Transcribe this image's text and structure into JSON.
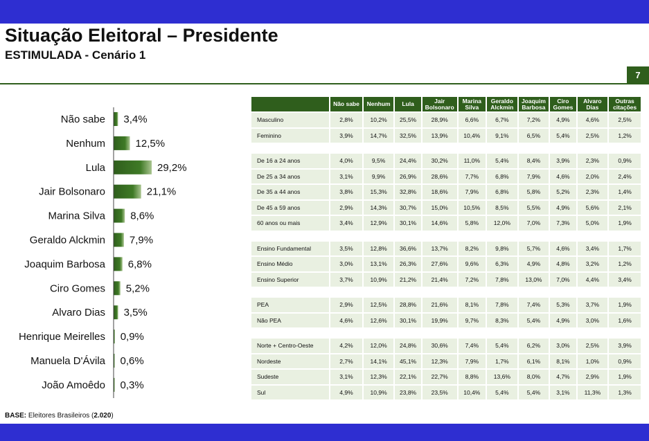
{
  "header": {
    "title": "Situação Eleitoral – Presidente",
    "subtitle": "ESTIMULADA - Cenário 1",
    "page_number": "7"
  },
  "colors": {
    "band": "#2e2ed1",
    "accent": "#2f5e1c",
    "cell": "#e9f0e1"
  },
  "chart_data": {
    "type": "bar",
    "orientation": "horizontal",
    "categories": [
      "Não sabe",
      "Nenhum",
      "Lula",
      "Jair Bolsonaro",
      "Marina Silva",
      "Geraldo Alckmin",
      "Joaquim Barbosa",
      "Ciro Gomes",
      "Alvaro Dias",
      "Henrique Meirelles",
      "Manuela D'Ávila",
      "João Amoêdo"
    ],
    "values": [
      3.4,
      12.5,
      29.2,
      21.1,
      8.6,
      7.9,
      6.8,
      5.2,
      3.5,
      0.9,
      0.6,
      0.3
    ],
    "value_labels": [
      "3,4%",
      "12,5%",
      "29,2%",
      "21,1%",
      "8,6%",
      "7,9%",
      "6,8%",
      "5,2%",
      "3,5%",
      "0,9%",
      "0,6%",
      "0,3%"
    ],
    "unit": "%",
    "grid": false,
    "legend": "none"
  },
  "base_note": {
    "label": "BASE:",
    "text": "Eleitores Brasileiros (",
    "count": "2.020",
    "close": ")"
  },
  "crosstab": {
    "columns": [
      "Não sabe",
      "Nenhum",
      "Lula",
      "Jair Bolsonaro",
      "Marina Silva",
      "Geraldo Alckmin",
      "Joaquim Barbosa",
      "Ciro Gomes",
      "Alvaro Dias",
      "Outras citações"
    ],
    "groups": [
      {
        "rows": [
          {
            "label": "Masculino",
            "values": [
              "2,8%",
              "10,2%",
              "25,5%",
              "28,9%",
              "6,6%",
              "6,7%",
              "7,2%",
              "4,9%",
              "4,6%",
              "2,5%"
            ]
          },
          {
            "label": "Feminino",
            "values": [
              "3,9%",
              "14,7%",
              "32,5%",
              "13,9%",
              "10,4%",
              "9,1%",
              "6,5%",
              "5,4%",
              "2,5%",
              "1,2%"
            ]
          }
        ]
      },
      {
        "rows": [
          {
            "label": "De 16 a 24 anos",
            "values": [
              "4,0%",
              "9,5%",
              "24,4%",
              "30,2%",
              "11,0%",
              "5,4%",
              "8,4%",
              "3,9%",
              "2,3%",
              "0,9%"
            ]
          },
          {
            "label": "De 25 a 34 anos",
            "values": [
              "3,1%",
              "9,9%",
              "26,9%",
              "28,6%",
              "7,7%",
              "6,8%",
              "7,9%",
              "4,6%",
              "2,0%",
              "2,4%"
            ]
          },
          {
            "label": "De 35 a 44 anos",
            "values": [
              "3,8%",
              "15,3%",
              "32,8%",
              "18,6%",
              "7,9%",
              "6,8%",
              "5,8%",
              "5,2%",
              "2,3%",
              "1,4%"
            ]
          },
          {
            "label": "De 45 a 59 anos",
            "values": [
              "2,9%",
              "14,3%",
              "30,7%",
              "15,0%",
              "10,5%",
              "8,5%",
              "5,5%",
              "4,9%",
              "5,6%",
              "2,1%"
            ]
          },
          {
            "label": "60 anos ou mais",
            "values": [
              "3,4%",
              "12,9%",
              "30,1%",
              "14,6%",
              "5,8%",
              "12,0%",
              "7,0%",
              "7,3%",
              "5,0%",
              "1,9%"
            ]
          }
        ]
      },
      {
        "rows": [
          {
            "label": "Ensino Fundamental",
            "values": [
              "3,5%",
              "12,8%",
              "36,6%",
              "13,7%",
              "8,2%",
              "9,8%",
              "5,7%",
              "4,6%",
              "3,4%",
              "1,7%"
            ]
          },
          {
            "label": "Ensino Médio",
            "values": [
              "3,0%",
              "13,1%",
              "26,3%",
              "27,6%",
              "9,6%",
              "6,3%",
              "4,9%",
              "4,8%",
              "3,2%",
              "1,2%"
            ]
          },
          {
            "label": "Ensino Superior",
            "values": [
              "3,7%",
              "10,9%",
              "21,2%",
              "21,4%",
              "7,2%",
              "7,8%",
              "13,0%",
              "7,0%",
              "4,4%",
              "3,4%"
            ]
          }
        ]
      },
      {
        "rows": [
          {
            "label": "PEA",
            "values": [
              "2,9%",
              "12,5%",
              "28,8%",
              "21,6%",
              "8,1%",
              "7,8%",
              "7,4%",
              "5,3%",
              "3,7%",
              "1,9%"
            ]
          },
          {
            "label": "Não PEA",
            "values": [
              "4,6%",
              "12,6%",
              "30,1%",
              "19,9%",
              "9,7%",
              "8,3%",
              "5,4%",
              "4,9%",
              "3,0%",
              "1,6%"
            ]
          }
        ]
      },
      {
        "rows": [
          {
            "label": "Norte + Centro-Oeste",
            "values": [
              "4,2%",
              "12,0%",
              "24,8%",
              "30,6%",
              "7,4%",
              "5,4%",
              "6,2%",
              "3,0%",
              "2,5%",
              "3,9%"
            ]
          },
          {
            "label": "Nordeste",
            "values": [
              "2,7%",
              "14,1%",
              "45,1%",
              "12,3%",
              "7,9%",
              "1,7%",
              "6,1%",
              "8,1%",
              "1,0%",
              "0,9%"
            ]
          },
          {
            "label": "Sudeste",
            "values": [
              "3,1%",
              "12,3%",
              "22,1%",
              "22,7%",
              "8,8%",
              "13,6%",
              "8,0%",
              "4,7%",
              "2,9%",
              "1,9%"
            ]
          },
          {
            "label": "Sul",
            "values": [
              "4,9%",
              "10,9%",
              "23,8%",
              "23,5%",
              "10,4%",
              "5,4%",
              "5,4%",
              "3,1%",
              "11,3%",
              "1,3%"
            ]
          }
        ]
      }
    ]
  }
}
